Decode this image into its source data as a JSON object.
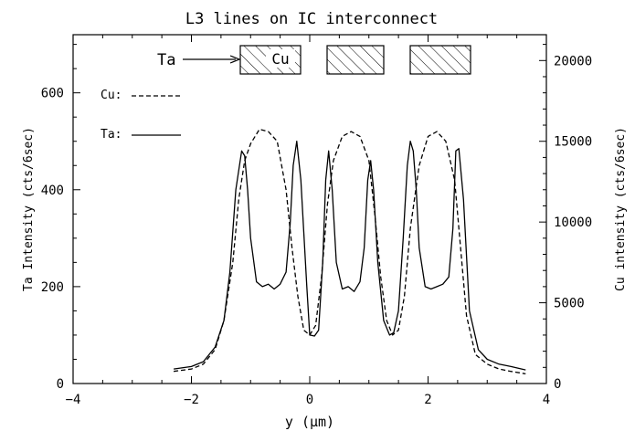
{
  "chart_data": {
    "type": "line",
    "title": "L3 lines on IC interconnect",
    "xlabel": "y (μm)",
    "ylabel_left": "Ta Intensity (cts/6sec)",
    "ylabel_right": "Cu intensity (cts/6sec)",
    "xlim": [
      -4,
      4
    ],
    "ylim_left": [
      0,
      720
    ],
    "ylim_right": [
      0,
      21600
    ],
    "x_ticks": [
      -4,
      -2,
      0,
      2,
      4
    ],
    "y_ticks_left": [
      0,
      200,
      400,
      600
    ],
    "y_ticks_right": [
      0,
      5000,
      10000,
      15000,
      20000
    ],
    "grid": false,
    "legend": [
      {
        "name": "Cu:",
        "style": "dashed"
      },
      {
        "name": "Ta:",
        "style": "solid"
      }
    ],
    "annotations": [
      {
        "text": "Ta",
        "kind": "arrow-label"
      },
      {
        "text": "Cu",
        "kind": "box-label"
      }
    ],
    "series": [
      {
        "name": "Ta",
        "axis": "left",
        "style": "solid",
        "x": [
          -2.3,
          -2.0,
          -1.8,
          -1.6,
          -1.45,
          -1.35,
          -1.25,
          -1.15,
          -1.1,
          -1.05,
          -1.0,
          -0.9,
          -0.8,
          -0.7,
          -0.6,
          -0.5,
          -0.4,
          -0.33,
          -0.28,
          -0.22,
          -0.15,
          -0.05,
          0.0,
          0.08,
          0.15,
          0.22,
          0.27,
          0.32,
          0.38,
          0.45,
          0.55,
          0.65,
          0.75,
          0.85,
          0.92,
          0.98,
          1.03,
          1.08,
          1.15,
          1.25,
          1.35,
          1.42,
          1.5,
          1.58,
          1.65,
          1.7,
          1.75,
          1.8,
          1.85,
          1.95,
          2.05,
          2.15,
          2.25,
          2.35,
          2.42,
          2.47,
          2.52,
          2.6,
          2.7,
          2.85,
          3.0,
          3.2,
          3.4,
          3.65
        ],
        "values": [
          30,
          35,
          45,
          75,
          130,
          230,
          400,
          480,
          470,
          400,
          300,
          210,
          200,
          205,
          195,
          205,
          230,
          330,
          450,
          500,
          420,
          200,
          100,
          98,
          110,
          250,
          420,
          480,
          400,
          250,
          195,
          200,
          190,
          210,
          280,
          420,
          460,
          400,
          250,
          130,
          100,
          105,
          150,
          300,
          450,
          500,
          480,
          400,
          280,
          200,
          195,
          200,
          205,
          220,
          320,
          480,
          485,
          380,
          150,
          70,
          50,
          40,
          35,
          28
        ]
      },
      {
        "name": "Cu",
        "axis": "right",
        "style": "dashed",
        "x": [
          -2.3,
          -2.0,
          -1.8,
          -1.6,
          -1.45,
          -1.3,
          -1.2,
          -1.1,
          -1.0,
          -0.85,
          -0.7,
          -0.55,
          -0.4,
          -0.3,
          -0.2,
          -0.1,
          0.0,
          0.1,
          0.2,
          0.3,
          0.4,
          0.55,
          0.7,
          0.85,
          1.0,
          1.1,
          1.2,
          1.3,
          1.4,
          1.5,
          1.6,
          1.7,
          1.85,
          2.0,
          2.15,
          2.3,
          2.45,
          2.55,
          2.65,
          2.8,
          3.0,
          3.2,
          3.4,
          3.65
        ],
        "values": [
          750,
          900,
          1200,
          2100,
          3900,
          7500,
          11400,
          13800,
          14850,
          15750,
          15600,
          15000,
          12000,
          8400,
          5400,
          3300,
          3000,
          3600,
          6600,
          11100,
          13800,
          15300,
          15600,
          15300,
          13800,
          10500,
          6600,
          3900,
          3000,
          3300,
          5400,
          9600,
          13500,
          15300,
          15600,
          15000,
          12600,
          8400,
          4200,
          1800,
          1200,
          900,
          750,
          600
        ]
      }
    ]
  }
}
